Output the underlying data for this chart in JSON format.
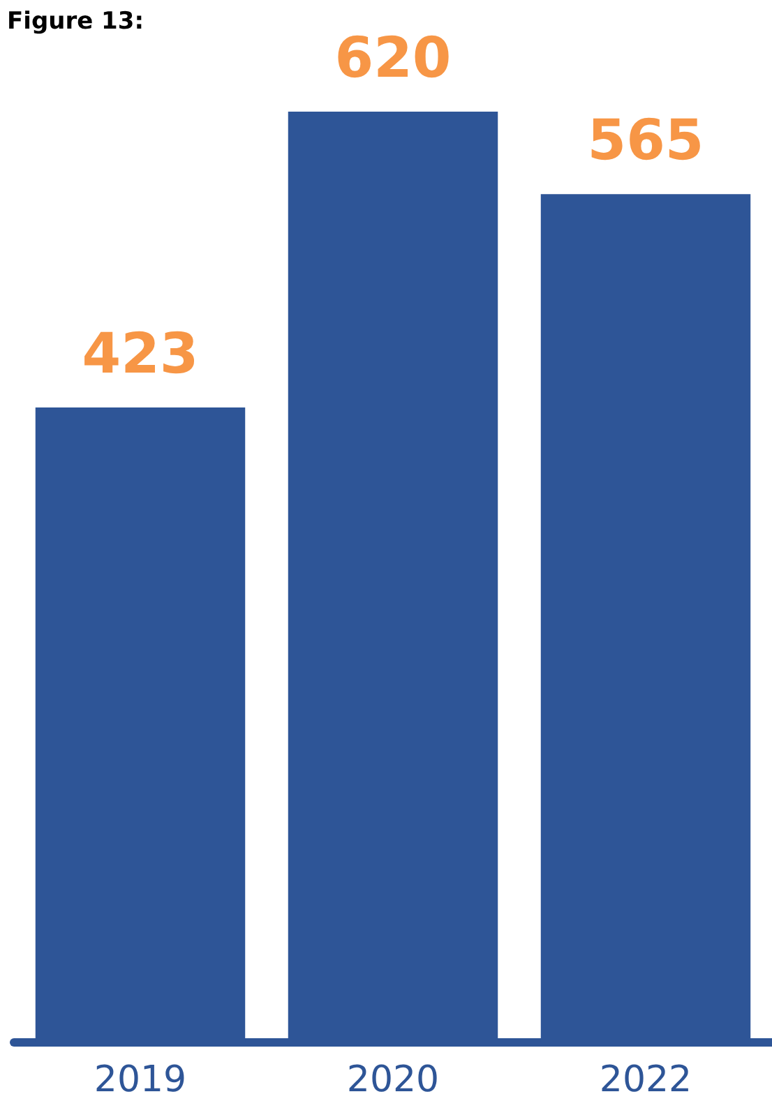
{
  "chart_data": {
    "type": "bar",
    "title": "Figure 13:",
    "categories": [
      "2019",
      "2020",
      "2022"
    ],
    "values": [
      423,
      620,
      565
    ],
    "color": "#2e5597",
    "data_labels": true,
    "grid": false
  }
}
